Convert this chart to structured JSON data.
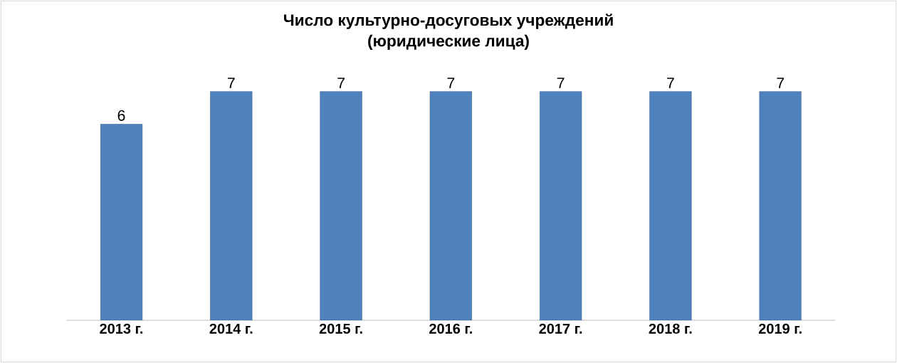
{
  "chart_data": {
    "type": "bar",
    "title": "Число культурно-досуговых учреждений",
    "subtitle": "(юридические лица)",
    "categories": [
      "2013 г.",
      "2014 г.",
      "2015 г.",
      "2016 г.",
      "2017 г.",
      "2018 г.",
      "2019 г."
    ],
    "values": [
      6,
      7,
      7,
      7,
      7,
      7,
      7
    ],
    "color": "#4f81bd",
    "data_labels": true
  }
}
